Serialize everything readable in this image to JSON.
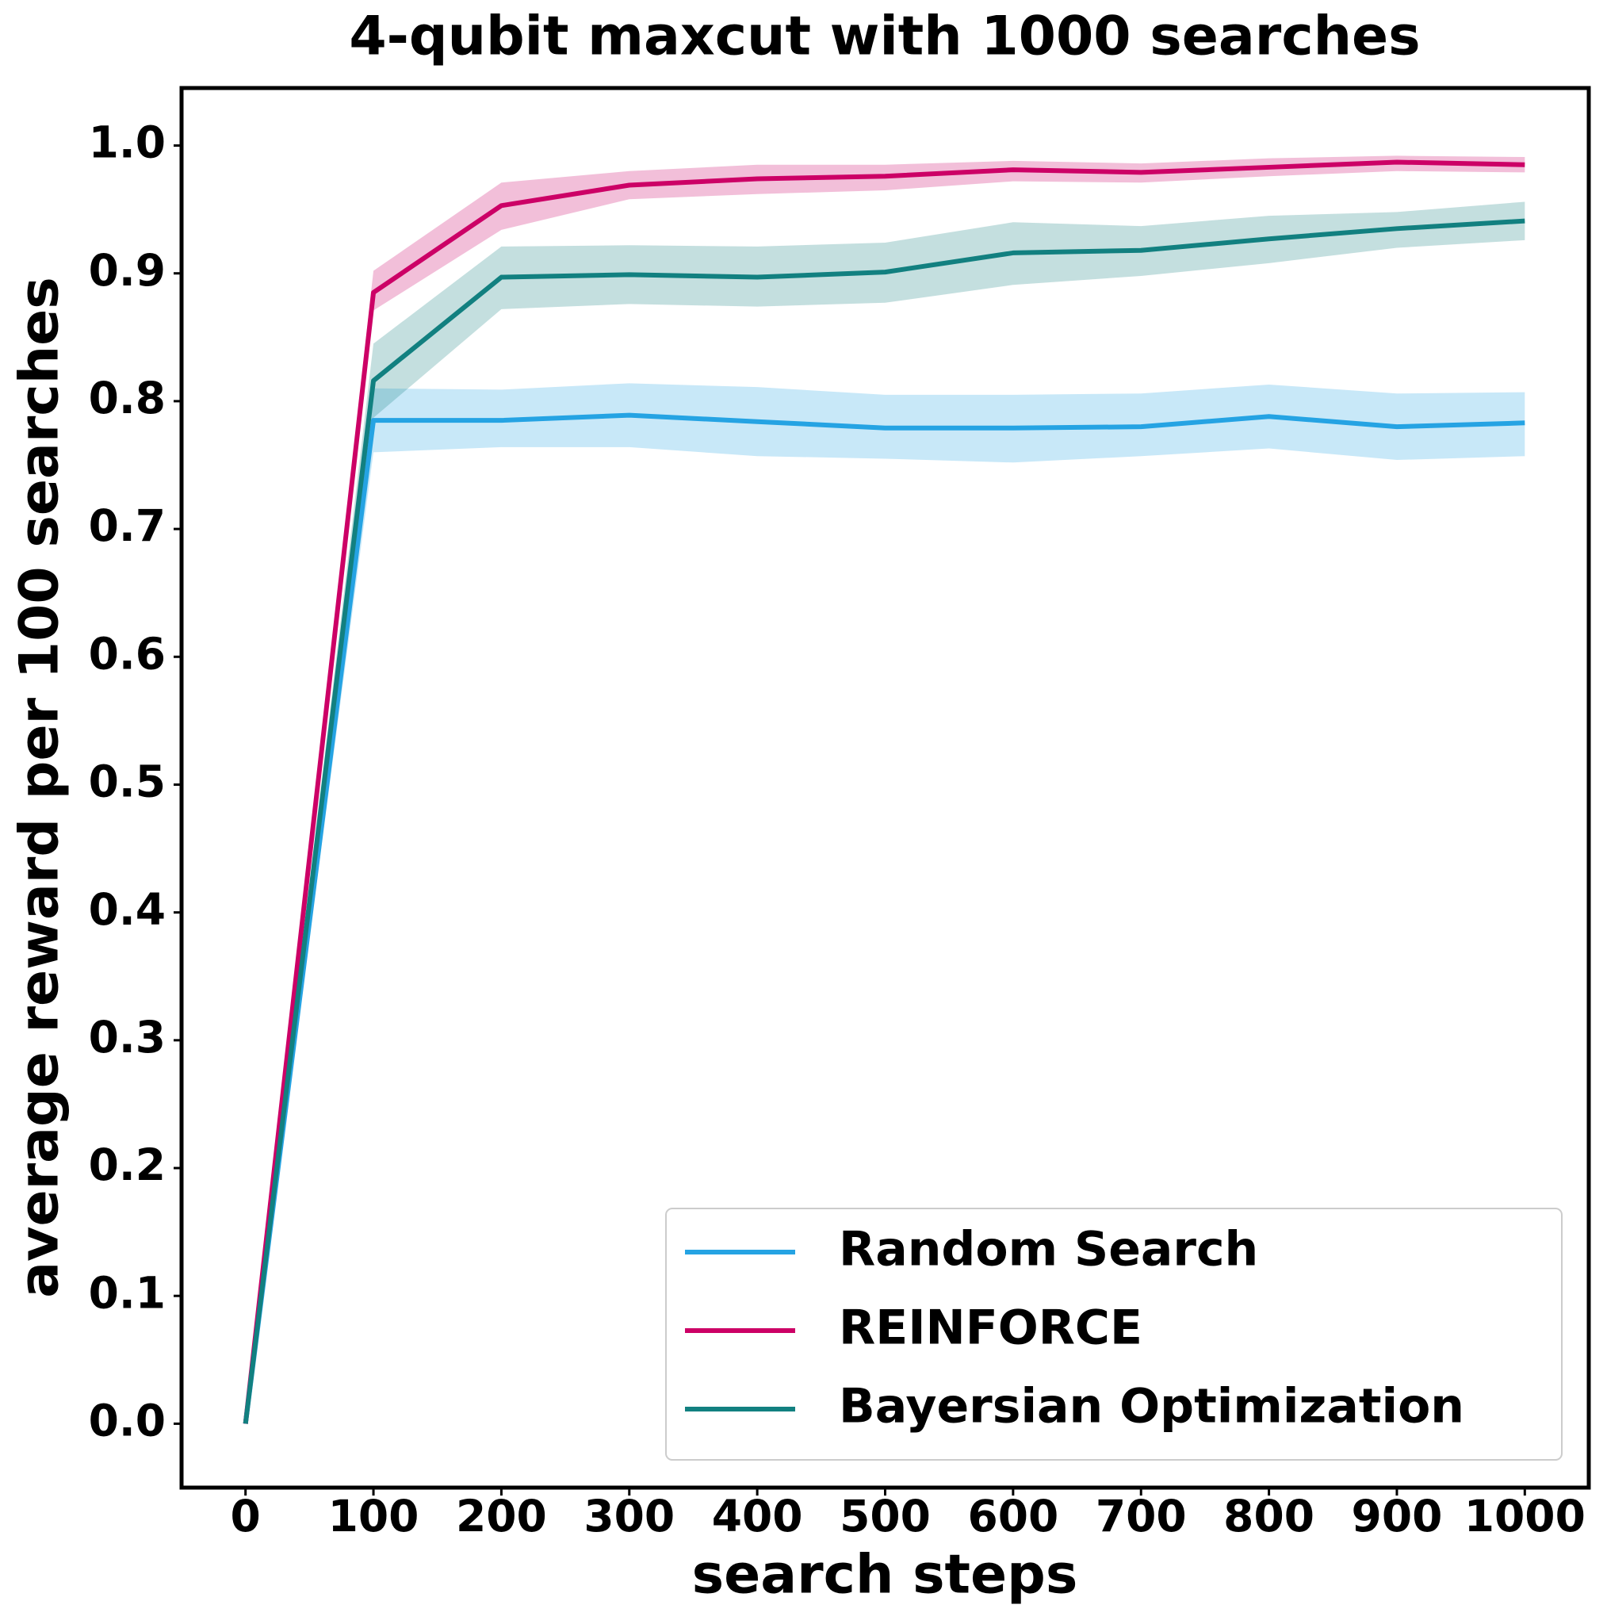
{
  "chart_data": {
    "type": "line",
    "title": "4-qubit maxcut with 1000 searches",
    "x_label": "search steps",
    "y_label": "average reward per 100 searches",
    "x": [
      0,
      100,
      200,
      300,
      400,
      500,
      600,
      700,
      800,
      900,
      1000
    ],
    "series": [
      {
        "name": "Random Search",
        "color": "#25a3e3",
        "values": [
          0,
          0.785,
          0.785,
          0.789,
          0.784,
          0.779,
          0.779,
          0.78,
          0.788,
          0.78,
          0.783
        ],
        "upper": [
          0,
          0.81,
          0.809,
          0.814,
          0.811,
          0.805,
          0.805,
          0.806,
          0.813,
          0.806,
          0.807
        ],
        "lower": [
          0,
          0.76,
          0.764,
          0.764,
          0.757,
          0.755,
          0.752,
          0.757,
          0.763,
          0.754,
          0.757
        ]
      },
      {
        "name": "REINFORCE",
        "color": "#cc0066",
        "values": [
          0,
          0.885,
          0.953,
          0.969,
          0.974,
          0.976,
          0.981,
          0.979,
          0.983,
          0.987,
          0.985
        ],
        "upper": [
          0,
          0.902,
          0.971,
          0.98,
          0.985,
          0.985,
          0.988,
          0.986,
          0.99,
          0.992,
          0.991
        ],
        "lower": [
          0,
          0.871,
          0.934,
          0.958,
          0.962,
          0.965,
          0.972,
          0.971,
          0.976,
          0.98,
          0.979
        ]
      },
      {
        "name": "Bayersian Optimization",
        "color": "#128080",
        "values": [
          0,
          0.816,
          0.897,
          0.899,
          0.897,
          0.901,
          0.916,
          0.918,
          0.927,
          0.935,
          0.941
        ],
        "upper": [
          0,
          0.845,
          0.921,
          0.922,
          0.921,
          0.924,
          0.94,
          0.937,
          0.945,
          0.948,
          0.956
        ],
        "lower": [
          0,
          0.787,
          0.872,
          0.876,
          0.874,
          0.877,
          0.891,
          0.898,
          0.908,
          0.92,
          0.926
        ]
      }
    ],
    "xlim": [
      -50,
      1050
    ],
    "ylim": [
      -0.05,
      1.045
    ],
    "xticks": [
      0,
      100,
      200,
      300,
      400,
      500,
      600,
      700,
      800,
      900,
      1000
    ],
    "yticks": [
      {
        "value": 0,
        "label": "0.0"
      },
      0.1,
      0.2,
      0.3,
      0.4,
      0.5,
      0.6,
      0.7,
      0.8,
      0.9,
      {
        "value": 1,
        "label": "1.0"
      }
    ],
    "legend": "lower right",
    "grid": false
  }
}
